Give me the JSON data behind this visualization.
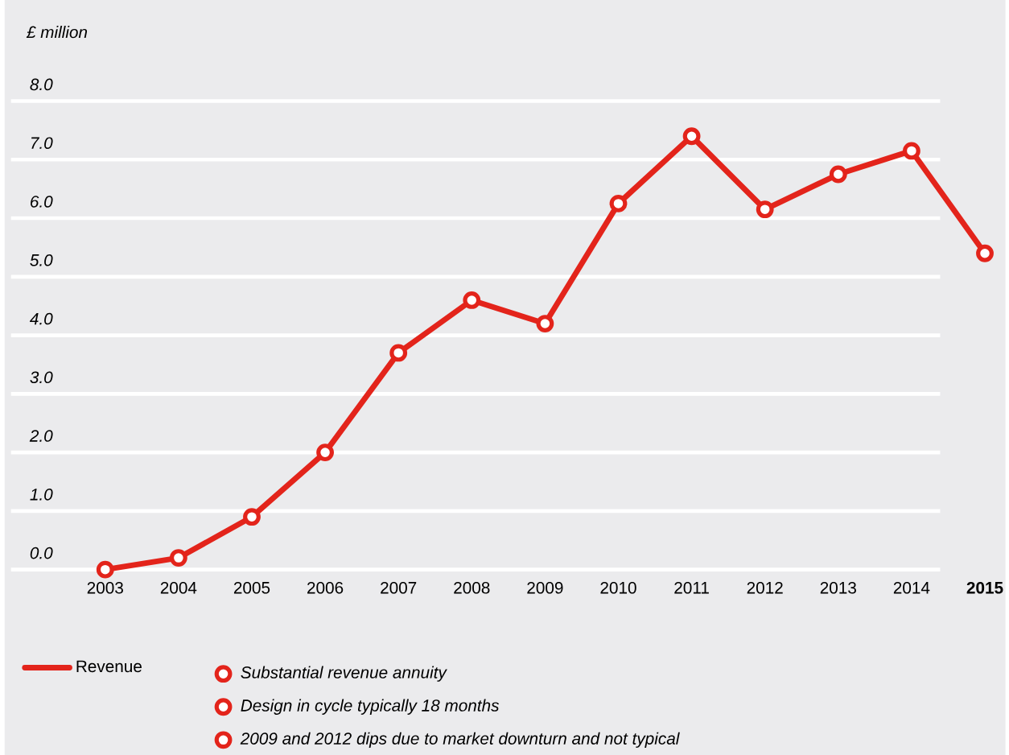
{
  "chart_data": {
    "type": "line",
    "ylabel": "£ million",
    "categories": [
      "2003",
      "2004",
      "2005",
      "2006",
      "2007",
      "2008",
      "2009",
      "2010",
      "2011",
      "2012",
      "2013",
      "2014",
      "2015"
    ],
    "series": [
      {
        "name": "Revenue",
        "color": "#e3241b",
        "values": [
          0.0,
          0.2,
          0.9,
          2.0,
          3.7,
          4.6,
          4.2,
          6.25,
          7.4,
          6.15,
          6.75,
          7.15,
          5.4
        ]
      }
    ],
    "ylim": [
      0,
      8
    ],
    "yticks": [
      {
        "value": 0,
        "label": "0.0"
      },
      {
        "value": 1,
        "label": "1.0"
      },
      {
        "value": 2,
        "label": "2.0"
      },
      {
        "value": 3,
        "label": "3.0"
      },
      {
        "value": 4,
        "label": "4.0"
      },
      {
        "value": 5,
        "label": "5.0"
      },
      {
        "value": 6,
        "label": "6.0"
      },
      {
        "value": 7,
        "label": "7.0"
      },
      {
        "value": 8,
        "label": "8.0"
      }
    ],
    "grid": "y",
    "legend": "bottom left",
    "marker": "circle",
    "line_style": "solid",
    "annotations": [
      "Substantial revenue annuity",
      "Design in cycle typically 18 months",
      "2009 and 2012 dips due to market downturn and not typical"
    ]
  }
}
